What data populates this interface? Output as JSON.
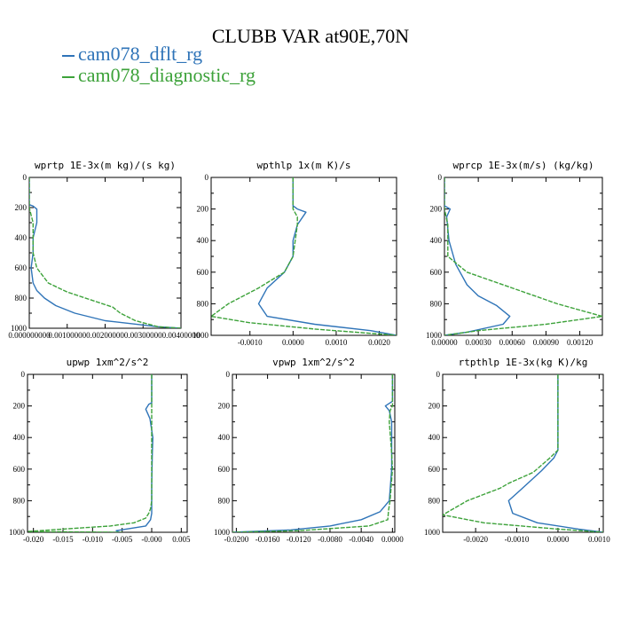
{
  "title": "CLUBB VAR at90E,70N",
  "legend": [
    {
      "name": "cam078_dflt_rg",
      "color": "#2f74b8"
    },
    {
      "name": "cam078_diagnostic_rg",
      "color": "#3da23a"
    }
  ],
  "chart_data": [
    {
      "type": "line",
      "title": "wprtp  1E-3x(m kg)/(s kg)",
      "xlim": [
        0,
        0.004
      ],
      "ylim": [
        1000,
        0
      ],
      "xticks": [
        0,
        0.001,
        0.002,
        0.003,
        0.004
      ],
      "xticklabels": [
        "0.000000000",
        "0.00100000",
        "0.00200000",
        "0.00300000",
        "0.00400000"
      ],
      "yticks": [
        0,
        200,
        400,
        600,
        800,
        1000
      ],
      "yticklabels": [
        "0",
        "200",
        "400",
        "600",
        "800",
        "1000"
      ],
      "series": [
        {
          "name": "cam078_dflt_rg",
          "x": [
            0,
            0,
            0.0001,
            0.0002,
            0.0002,
            0.0001,
            0.0001,
            5e-05,
            0.0001,
            0.0002,
            0.0004,
            0.0007,
            0.0012,
            0.002,
            0.0034,
            0.004
          ],
          "y": [
            0,
            180,
            190,
            210,
            300,
            400,
            500,
            600,
            700,
            750,
            800,
            850,
            900,
            950,
            990,
            1000
          ]
        },
        {
          "name": "cam078_diagnostic_rg",
          "x": [
            0,
            0,
            5e-05,
            0.0001,
            0.0001,
            0.0001,
            0.0002,
            0.0005,
            0.001,
            0.0016,
            0.0022,
            0.0024,
            0.0028,
            0.0034,
            0.004
          ],
          "y": [
            0,
            200,
            250,
            300,
            400,
            500,
            600,
            700,
            760,
            810,
            860,
            900,
            950,
            990,
            1000
          ]
        }
      ]
    },
    {
      "type": "line",
      "title": "wpthlp  1x(m K)/s",
      "xlim": [
        -0.0019,
        0.0024
      ],
      "ylim": [
        1000,
        0
      ],
      "xticks": [
        -0.001,
        0,
        0.001,
        0.002
      ],
      "xticklabels": [
        "-0.0010",
        "0.0000",
        "0.0010",
        "0.0020"
      ],
      "yticks": [
        0,
        200,
        400,
        600,
        800,
        1000
      ],
      "yticklabels": [
        "0",
        "200",
        "400",
        "600",
        "800",
        "1000"
      ],
      "series": [
        {
          "name": "cam078_dflt_rg",
          "x": [
            0,
            0,
            0.0001,
            0.0003,
            0.0001,
            0,
            0,
            -0.0002,
            -0.0006,
            -0.0008,
            -0.0006,
            0.0005,
            0.0018,
            0.0024
          ],
          "y": [
            0,
            180,
            200,
            220,
            300,
            400,
            500,
            600,
            700,
            800,
            880,
            930,
            970,
            1000
          ]
        },
        {
          "name": "cam078_diagnostic_rg",
          "x": [
            0,
            0,
            0.0001,
            0.0001,
            0,
            -0.0002,
            -0.0008,
            -0.0015,
            -0.0019,
            -0.001,
            0.0005,
            0.0024
          ],
          "y": [
            0,
            200,
            250,
            300,
            500,
            600,
            700,
            800,
            880,
            920,
            960,
            1000
          ]
        }
      ]
    },
    {
      "type": "line",
      "title": "wprcp  1E-3x(m/s) (kg/kg)",
      "xlim": [
        0,
        0.0014
      ],
      "ylim": [
        1000,
        0
      ],
      "xticks": [
        0,
        0.0003,
        0.0006,
        0.0009,
        0.0012
      ],
      "xticklabels": [
        "0.00000",
        "0.00030",
        "0.00060",
        "0.00090",
        "0.00120"
      ],
      "yticks": [
        0,
        200,
        400,
        600,
        800,
        1000
      ],
      "yticklabels": [
        "0",
        "200",
        "400",
        "600",
        "800",
        "1000"
      ],
      "series": [
        {
          "name": "cam078_dflt_rg",
          "x": [
            0,
            0,
            5e-05,
            2e-05,
            4e-05,
            0.0001,
            0.0002,
            0.0003,
            0.00046,
            0.00058,
            0.00052,
            0.0002,
            0
          ],
          "y": [
            0,
            180,
            200,
            250,
            400,
            550,
            680,
            750,
            810,
            880,
            930,
            980,
            1000
          ]
        },
        {
          "name": "cam078_diagnostic_rg",
          "x": [
            0,
            0,
            3e-05,
            3e-05,
            0.0002,
            0.0006,
            0.001,
            0.0014,
            0.0009,
            0.0003,
            0
          ],
          "y": [
            0,
            200,
            300,
            500,
            600,
            700,
            800,
            880,
            930,
            970,
            1000
          ]
        }
      ]
    },
    {
      "type": "line",
      "title": "upwp  1xm^2/s^2",
      "xlim": [
        -0.021,
        0.006
      ],
      "ylim": [
        1000,
        0
      ],
      "xticks": [
        -0.02,
        -0.015,
        -0.01,
        -0.005,
        0,
        0.005
      ],
      "xticklabels": [
        "-0.020",
        "-0.015",
        "-0.010",
        "-0.005",
        "-0.000",
        "0.005"
      ],
      "yticks": [
        0,
        200,
        400,
        600,
        800,
        1000
      ],
      "yticklabels": [
        "0",
        "200",
        "400",
        "600",
        "800",
        "1000"
      ],
      "series": [
        {
          "name": "cam078_dflt_rg",
          "x": [
            0,
            0,
            -0.0005,
            -0.001,
            -0.0003,
            0.0002,
            0.0001,
            0,
            0,
            -0.0002,
            -0.001,
            -0.006,
            -0.0055
          ],
          "y": [
            0,
            180,
            190,
            220,
            280,
            400,
            500,
            700,
            880,
            920,
            960,
            990,
            1000
          ]
        },
        {
          "name": "cam078_diagnostic_rg",
          "x": [
            0,
            0,
            0,
            0,
            -0.0002,
            -0.0005,
            -0.001,
            -0.003,
            -0.007,
            -0.015,
            -0.021,
            -0.005
          ],
          "y": [
            0,
            300,
            600,
            800,
            850,
            880,
            910,
            940,
            960,
            980,
            995,
            1000
          ]
        }
      ]
    },
    {
      "type": "line",
      "title": "vpwp  1xm^2/s^2",
      "xlim": [
        -0.0205,
        0.0003
      ],
      "ylim": [
        1000,
        0
      ],
      "xticks": [
        -0.02,
        -0.016,
        -0.012,
        -0.008,
        -0.004,
        0
      ],
      "xticklabels": [
        "-0.0200",
        "-0.0160",
        "-0.0120",
        "-0.0080",
        "-0.0040",
        "0.0000"
      ],
      "yticks": [
        0,
        200,
        400,
        600,
        800,
        1000
      ],
      "yticklabels": [
        "0",
        "200",
        "400",
        "600",
        "800",
        "1000"
      ],
      "series": [
        {
          "name": "cam078_dflt_rg",
          "x": [
            0,
            0,
            -0.0009,
            -0.0004,
            -0.0001,
            -0.0001,
            -0.0004,
            -0.0016,
            -0.004,
            -0.008,
            -0.013,
            -0.0205
          ],
          "y": [
            0,
            170,
            200,
            230,
            300,
            600,
            800,
            870,
            920,
            960,
            985,
            1000
          ]
        },
        {
          "name": "cam078_diagnostic_rg",
          "x": [
            0,
            0,
            -0.0003,
            -0.0004,
            -0.0001,
            0,
            -0.0003,
            -0.0005,
            -0.0006,
            -0.003,
            -0.012,
            -0.0205
          ],
          "y": [
            0,
            200,
            230,
            300,
            500,
            600,
            800,
            860,
            920,
            960,
            990,
            1000
          ]
        }
      ]
    },
    {
      "type": "line",
      "title": "rtpthlp  1E-3x(kg K)/kg",
      "xlim": [
        -0.0028,
        0.0011
      ],
      "ylim": [
        1000,
        0
      ],
      "xticks": [
        -0.002,
        -0.001,
        0,
        0.001
      ],
      "xticklabels": [
        "-0.0020",
        "-0.0010",
        "0.0000",
        "0.0010"
      ],
      "yticks": [
        0,
        200,
        400,
        600,
        800,
        1000
      ],
      "yticklabels": [
        "0",
        "200",
        "400",
        "600",
        "800",
        "1000"
      ],
      "series": [
        {
          "name": "cam078_dflt_rg",
          "x": [
            0,
            0,
            -0.0001,
            -0.0004,
            -0.0009,
            -0.0012,
            -0.0011,
            -0.0005,
            0.0005,
            0.0011
          ],
          "y": [
            0,
            480,
            530,
            610,
            730,
            800,
            880,
            940,
            980,
            1000
          ]
        },
        {
          "name": "cam078_diagnostic_rg",
          "x": [
            0,
            0,
            -0.0002,
            -0.0006,
            -0.0012,
            -0.0014,
            -0.0022,
            -0.0028,
            -0.0018,
            0,
            0.0011
          ],
          "y": [
            0,
            480,
            530,
            620,
            690,
            720,
            800,
            890,
            940,
            980,
            1000
          ]
        }
      ]
    }
  ]
}
